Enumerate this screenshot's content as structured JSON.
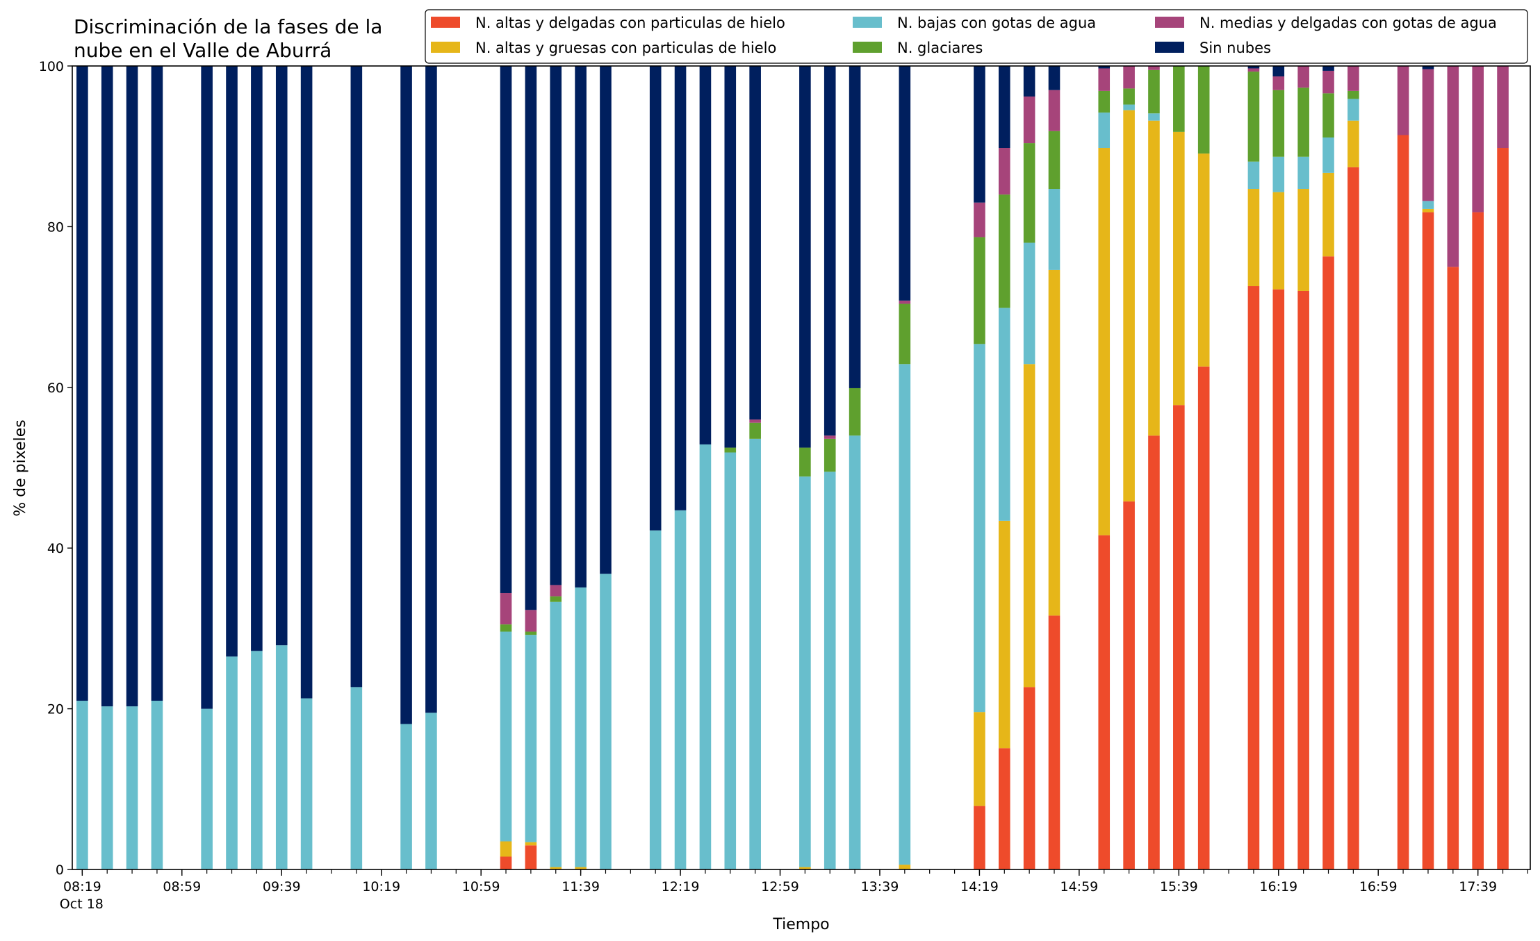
{
  "chart_data": {
    "type": "bar",
    "stacked": true,
    "title_lines": [
      "Discriminación de la fases de la",
      "nube en el Valle de Aburrá"
    ],
    "xlabel": "Tiempo",
    "ylabel": "% de pixeles",
    "ylim": [
      0,
      100
    ],
    "yticks": [
      0,
      20,
      40,
      60,
      80,
      100
    ],
    "xlim_minutes": [
      495,
      1080
    ],
    "x_tick_labels": [
      {
        "minute": 499,
        "label": "08:19",
        "sub": "Oct 18"
      },
      {
        "minute": 539,
        "label": "08:59"
      },
      {
        "minute": 579,
        "label": "09:39"
      },
      {
        "minute": 619,
        "label": "10:19"
      },
      {
        "minute": 659,
        "label": "10:59"
      },
      {
        "minute": 699,
        "label": "11:39"
      },
      {
        "minute": 739,
        "label": "12:19"
      },
      {
        "minute": 779,
        "label": "12:59"
      },
      {
        "minute": 819,
        "label": "13:39"
      },
      {
        "minute": 859,
        "label": "14:19"
      },
      {
        "minute": 899,
        "label": "14:59"
      },
      {
        "minute": 939,
        "label": "15:39"
      },
      {
        "minute": 979,
        "label": "16:19"
      },
      {
        "minute": 1019,
        "label": "16:59"
      },
      {
        "minute": 1059,
        "label": "17:39"
      }
    ],
    "grid": false,
    "legend_position": "top-right",
    "legend": [
      {
        "key": "altas_delgadas",
        "label": "N. altas y delgadas con particulas de hielo",
        "color": "#EE4B2B"
      },
      {
        "key": "altas_gruesas",
        "label": "N. altas y gruesas con particulas de hielo",
        "color": "#E6B619"
      },
      {
        "key": "bajas",
        "label": "N. bajas con gotas de agua",
        "color": "#68BECC"
      },
      {
        "key": "glaciares",
        "label": "N. glaciares",
        "color": "#5FA02E"
      },
      {
        "key": "medias",
        "label": "N. medias y delgadas con gotas de agua",
        "color": "#A6447A"
      },
      {
        "key": "sin_nubes",
        "label": "Sin nubes",
        "color": "#001F5E"
      }
    ],
    "series_order": [
      "altas_delgadas",
      "altas_gruesas",
      "bajas",
      "glaciares",
      "medias",
      "sin_nubes"
    ],
    "bars": [
      {
        "time": "08:19",
        "altas_delgadas": 0,
        "altas_gruesas": 0,
        "bajas": 21.0,
        "glaciares": 0,
        "medias": 0,
        "sin_nubes": 79.0
      },
      {
        "time": "08:29",
        "altas_delgadas": 0,
        "altas_gruesas": 0,
        "bajas": 20.3,
        "glaciares": 0,
        "medias": 0,
        "sin_nubes": 79.7
      },
      {
        "time": "08:39",
        "altas_delgadas": 0,
        "altas_gruesas": 0,
        "bajas": 20.3,
        "glaciares": 0,
        "medias": 0,
        "sin_nubes": 79.7
      },
      {
        "time": "08:49",
        "altas_delgadas": 0,
        "altas_gruesas": 0,
        "bajas": 21.0,
        "glaciares": 0,
        "medias": 0,
        "sin_nubes": 79.0
      },
      {
        "time": "09:09",
        "altas_delgadas": 0,
        "altas_gruesas": 0,
        "bajas": 20.0,
        "glaciares": 0,
        "medias": 0,
        "sin_nubes": 80.0
      },
      {
        "time": "09:19",
        "altas_delgadas": 0,
        "altas_gruesas": 0,
        "bajas": 26.5,
        "glaciares": 0,
        "medias": 0,
        "sin_nubes": 73.5
      },
      {
        "time": "09:29",
        "altas_delgadas": 0,
        "altas_gruesas": 0,
        "bajas": 27.2,
        "glaciares": 0,
        "medias": 0,
        "sin_nubes": 72.8
      },
      {
        "time": "09:39",
        "altas_delgadas": 0,
        "altas_gruesas": 0,
        "bajas": 27.9,
        "glaciares": 0,
        "medias": 0,
        "sin_nubes": 72.1
      },
      {
        "time": "09:49",
        "altas_delgadas": 0,
        "altas_gruesas": 0,
        "bajas": 21.3,
        "glaciares": 0,
        "medias": 0,
        "sin_nubes": 78.7
      },
      {
        "time": "10:09",
        "altas_delgadas": 0,
        "altas_gruesas": 0,
        "bajas": 22.7,
        "glaciares": 0,
        "medias": 0,
        "sin_nubes": 77.3
      },
      {
        "time": "10:29",
        "altas_delgadas": 0,
        "altas_gruesas": 0,
        "bajas": 18.1,
        "glaciares": 0,
        "medias": 0,
        "sin_nubes": 81.9
      },
      {
        "time": "10:39",
        "altas_delgadas": 0,
        "altas_gruesas": 0,
        "bajas": 19.5,
        "glaciares": 0,
        "medias": 0,
        "sin_nubes": 80.5
      },
      {
        "time": "11:09",
        "altas_delgadas": 1.6,
        "altas_gruesas": 1.9,
        "bajas": 26.1,
        "glaciares": 0.9,
        "medias": 3.9,
        "sin_nubes": 65.6
      },
      {
        "time": "11:19",
        "altas_delgadas": 3.0,
        "altas_gruesas": 0.4,
        "bajas": 25.8,
        "glaciares": 0.4,
        "medias": 2.7,
        "sin_nubes": 67.7
      },
      {
        "time": "11:29",
        "altas_delgadas": 0,
        "altas_gruesas": 0.3,
        "bajas": 33.0,
        "glaciares": 0.7,
        "medias": 1.4,
        "sin_nubes": 64.6
      },
      {
        "time": "11:39",
        "altas_delgadas": 0,
        "altas_gruesas": 0.3,
        "bajas": 34.8,
        "glaciares": 0,
        "medias": 0,
        "sin_nubes": 64.9
      },
      {
        "time": "11:49",
        "altas_delgadas": 0,
        "altas_gruesas": 0,
        "bajas": 36.8,
        "glaciares": 0,
        "medias": 0,
        "sin_nubes": 63.2
      },
      {
        "time": "12:09",
        "altas_delgadas": 0,
        "altas_gruesas": 0,
        "bajas": 42.2,
        "glaciares": 0,
        "medias": 0,
        "sin_nubes": 57.8
      },
      {
        "time": "12:19",
        "altas_delgadas": 0,
        "altas_gruesas": 0,
        "bajas": 44.7,
        "glaciares": 0,
        "medias": 0,
        "sin_nubes": 55.3
      },
      {
        "time": "12:29",
        "altas_delgadas": 0,
        "altas_gruesas": 0,
        "bajas": 52.9,
        "glaciares": 0,
        "medias": 0,
        "sin_nubes": 47.1
      },
      {
        "time": "12:39",
        "altas_delgadas": 0,
        "altas_gruesas": 0,
        "bajas": 51.9,
        "glaciares": 0.6,
        "medias": 0,
        "sin_nubes": 47.5
      },
      {
        "time": "12:49",
        "altas_delgadas": 0,
        "altas_gruesas": 0,
        "bajas": 53.6,
        "glaciares": 2.0,
        "medias": 0.4,
        "sin_nubes": 44.0
      },
      {
        "time": "13:09",
        "altas_delgadas": 0,
        "altas_gruesas": 0.3,
        "bajas": 48.6,
        "glaciares": 3.6,
        "medias": 0,
        "sin_nubes": 47.5
      },
      {
        "time": "13:19",
        "altas_delgadas": 0,
        "altas_gruesas": 0,
        "bajas": 49.5,
        "glaciares": 4.1,
        "medias": 0.4,
        "sin_nubes": 46.0
      },
      {
        "time": "13:29",
        "altas_delgadas": 0,
        "altas_gruesas": 0,
        "bajas": 54.0,
        "glaciares": 5.9,
        "medias": 0,
        "sin_nubes": 40.1
      },
      {
        "time": "13:49",
        "altas_delgadas": 0,
        "altas_gruesas": 0.6,
        "bajas": 62.3,
        "glaciares": 7.5,
        "medias": 0.4,
        "sin_nubes": 29.2
      },
      {
        "time": "14:19",
        "altas_delgadas": 7.9,
        "altas_gruesas": 11.7,
        "bajas": 45.8,
        "glaciares": 13.3,
        "medias": 4.3,
        "sin_nubes": 17.0
      },
      {
        "time": "14:29",
        "altas_delgadas": 15.1,
        "altas_gruesas": 28.3,
        "bajas": 26.5,
        "glaciares": 14.1,
        "medias": 5.8,
        "sin_nubes": 10.2
      },
      {
        "time": "14:39",
        "altas_delgadas": 22.7,
        "altas_gruesas": 40.2,
        "bajas": 15.1,
        "glaciares": 12.4,
        "medias": 5.8,
        "sin_nubes": 3.8
      },
      {
        "time": "14:49",
        "altas_delgadas": 31.6,
        "altas_gruesas": 43.0,
        "bajas": 10.1,
        "glaciares": 7.2,
        "medias": 5.1,
        "sin_nubes": 3.0
      },
      {
        "time": "15:09",
        "altas_delgadas": 41.6,
        "altas_gruesas": 48.2,
        "bajas": 4.4,
        "glaciares": 2.7,
        "medias": 2.8,
        "sin_nubes": 0.3
      },
      {
        "time": "15:19",
        "altas_delgadas": 45.8,
        "altas_gruesas": 48.7,
        "bajas": 0.7,
        "glaciares": 2.0,
        "medias": 2.8,
        "sin_nubes": 0
      },
      {
        "time": "15:29",
        "altas_delgadas": 54.0,
        "altas_gruesas": 39.2,
        "bajas": 0.9,
        "glaciares": 5.4,
        "medias": 0.5,
        "sin_nubes": 0
      },
      {
        "time": "15:39",
        "altas_delgadas": 57.8,
        "altas_gruesas": 34.0,
        "bajas": 0,
        "glaciares": 8.2,
        "medias": 0,
        "sin_nubes": 0
      },
      {
        "time": "15:49",
        "altas_delgadas": 62.6,
        "altas_gruesas": 26.5,
        "bajas": 0,
        "glaciares": 10.9,
        "medias": 0,
        "sin_nubes": 0
      },
      {
        "time": "16:09",
        "altas_delgadas": 72.6,
        "altas_gruesas": 12.1,
        "bajas": 3.4,
        "glaciares": 11.2,
        "medias": 0.4,
        "sin_nubes": 0.3
      },
      {
        "time": "16:19",
        "altas_delgadas": 72.2,
        "altas_gruesas": 12.1,
        "bajas": 4.4,
        "glaciares": 8.3,
        "medias": 1.7,
        "sin_nubes": 1.3
      },
      {
        "time": "16:29",
        "altas_delgadas": 72.0,
        "altas_gruesas": 12.7,
        "bajas": 4.0,
        "glaciares": 8.6,
        "medias": 2.7,
        "sin_nubes": 0
      },
      {
        "time": "16:39",
        "altas_delgadas": 76.3,
        "altas_gruesas": 10.4,
        "bajas": 4.4,
        "glaciares": 5.5,
        "medias": 2.8,
        "sin_nubes": 0.6
      },
      {
        "time": "16:49",
        "altas_delgadas": 87.4,
        "altas_gruesas": 5.8,
        "bajas": 2.7,
        "glaciares": 1.0,
        "medias": 3.1,
        "sin_nubes": 0
      },
      {
        "time": "17:09",
        "altas_delgadas": 91.4,
        "altas_gruesas": 0,
        "bajas": 0,
        "glaciares": 0,
        "medias": 8.6,
        "sin_nubes": 0
      },
      {
        "time": "17:19",
        "altas_delgadas": 81.8,
        "altas_gruesas": 0.4,
        "bajas": 1.0,
        "glaciares": 0,
        "medias": 16.4,
        "sin_nubes": 0.4
      },
      {
        "time": "17:29",
        "altas_delgadas": 75.0,
        "altas_gruesas": 0,
        "bajas": 0,
        "glaciares": 0,
        "medias": 25.0,
        "sin_nubes": 0
      },
      {
        "time": "17:39",
        "altas_delgadas": 81.8,
        "altas_gruesas": 0,
        "bajas": 0,
        "glaciares": 0,
        "medias": 18.2,
        "sin_nubes": 0
      },
      {
        "time": "17:49",
        "altas_delgadas": 89.8,
        "altas_gruesas": 0,
        "bajas": 0,
        "glaciares": 0,
        "medias": 10.2,
        "sin_nubes": 0
      }
    ]
  }
}
